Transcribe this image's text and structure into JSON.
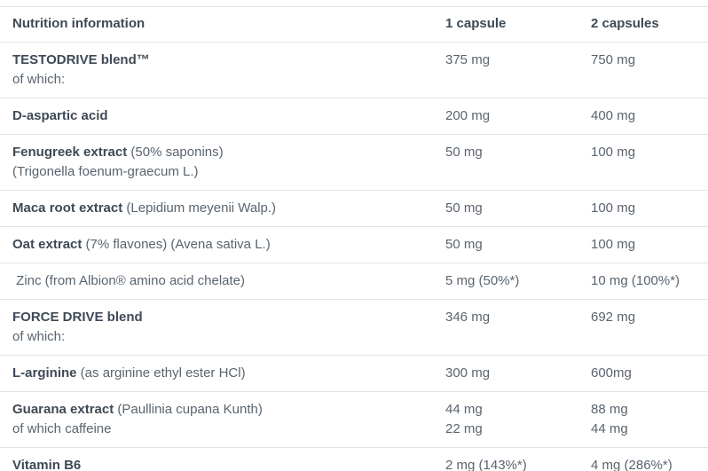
{
  "table": {
    "header": {
      "col1": "Nutrition information",
      "col2": "1 capsule",
      "col3": "2 capsules"
    },
    "colors": {
      "heading_text": "#3f4a56",
      "body_text": "#5a646e",
      "divider": "#e1e4e7",
      "background": "#ffffff"
    },
    "rows": [
      {
        "bold": "TESTODRIVE blend™",
        "rest": "",
        "sub": "of which:",
        "v1": "375 mg",
        "v2": "750 mg"
      },
      {
        "bold": "D-aspartic acid",
        "rest": "",
        "v1": "200 mg",
        "v2": "400 mg"
      },
      {
        "bold": "Fenugreek extract",
        "rest": " (50% saponins)",
        "sub": "(Trigonella foenum-graecum L.)",
        "v1": "50 mg",
        "v2": "100 mg"
      },
      {
        "bold": "Maca root extract",
        "rest": " (Lepidium meyenii Walp.)",
        "v1": "50 mg",
        "v2": "100 mg"
      },
      {
        "bold": "Oat extract",
        "rest": " (7% flavones) (Avena sativa L.)",
        "v1": "50 mg",
        "v2": "100 mg"
      },
      {
        "bold": "",
        "rest": " Zinc (from Albion® amino acid chelate)",
        "v1": "5 mg (50%*)",
        "v2": "10 mg (100%*)"
      },
      {
        "bold": "FORCE DRIVE blend",
        "rest": "",
        "sub": "of which:",
        "v1": "346 mg",
        "v2": "692 mg"
      },
      {
        "bold": "L-arginine",
        "rest": " (as arginine ethyl ester HCl)",
        "v1": "300 mg",
        "v2": "600mg"
      },
      {
        "bold": "Guarana extract",
        "rest": " (Paullinia cupana Kunth)",
        "sub": "of which caffeine",
        "sub_v1": "22 mg",
        "sub_v2": "44 mg",
        "v1": "44 mg",
        "v2": "88 mg"
      },
      {
        "bold": "Vitamin B6",
        "rest": "",
        "v1": "2 mg (143%*)",
        "v2": "4 mg (286%*)"
      }
    ]
  }
}
